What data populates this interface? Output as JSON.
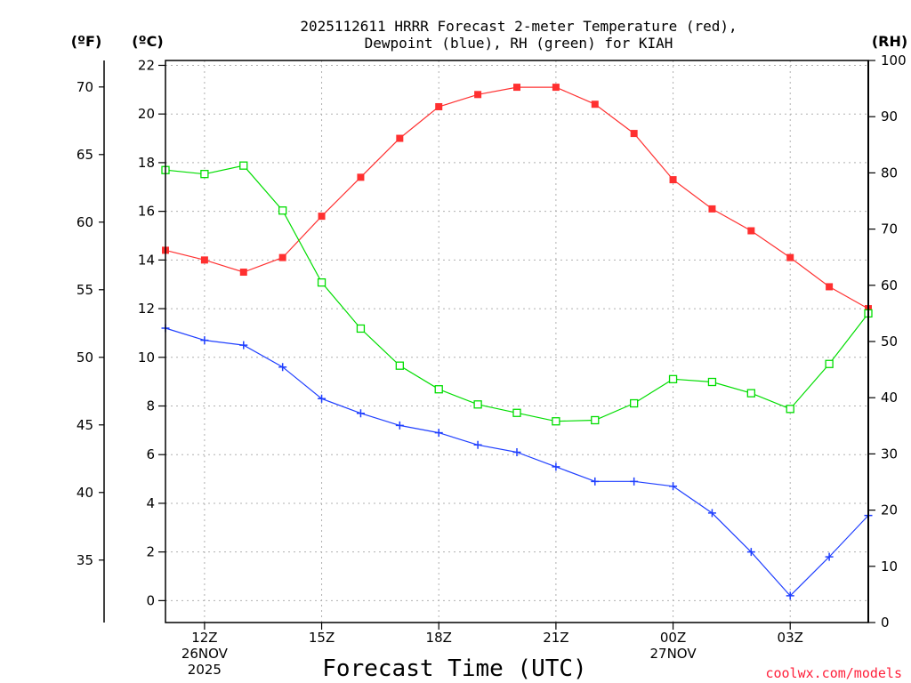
{
  "chart_data": {
    "type": "line",
    "title_line1": "2025112611 HRRR Forecast 2-meter Temperature (red),",
    "title_line2": "Dewpoint (blue), RH (green) for KIAH",
    "xlabel": "Forecast Time (UTC)",
    "credit": "coolwx.com/models",
    "left_outer_axis": {
      "label": "(ºF)",
      "ticks": [
        35,
        40,
        45,
        50,
        55,
        60,
        65,
        70
      ]
    },
    "left_axis": {
      "label": "(ºC)",
      "ylim": [
        -0.9,
        22.2
      ],
      "ticks": [
        0,
        2,
        4,
        6,
        8,
        10,
        12,
        14,
        16,
        18,
        20,
        22
      ]
    },
    "right_axis": {
      "label": "(RH)",
      "ylim": [
        0,
        100
      ],
      "ticks": [
        0,
        10,
        20,
        30,
        40,
        50,
        60,
        70,
        80,
        90,
        100
      ]
    },
    "x_hours": [
      11,
      12,
      13,
      14,
      15,
      16,
      17,
      18,
      19,
      20,
      21,
      22,
      23,
      24,
      25,
      26,
      27,
      28,
      29
    ],
    "x_range": [
      11,
      29
    ],
    "x_ticks": [
      {
        "hour": 12,
        "lines": [
          "12Z",
          "26NOV",
          "2025"
        ]
      },
      {
        "hour": 15,
        "lines": [
          "15Z"
        ]
      },
      {
        "hour": 18,
        "lines": [
          "18Z"
        ]
      },
      {
        "hour": 21,
        "lines": [
          "21Z"
        ]
      },
      {
        "hour": 24,
        "lines": [
          "00Z",
          "27NOV"
        ]
      },
      {
        "hour": 27,
        "lines": [
          "03Z"
        ]
      }
    ],
    "series": [
      {
        "name": "2-meter Temperature",
        "axis": "left",
        "color": "#ff3030",
        "marker": "filled-square",
        "values": [
          14.4,
          14.0,
          13.5,
          14.1,
          15.8,
          17.4,
          19.0,
          20.3,
          20.8,
          21.1,
          21.1,
          20.4,
          19.2,
          17.3,
          16.1,
          15.2,
          14.1,
          12.9,
          12.0
        ]
      },
      {
        "name": "Dewpoint",
        "axis": "left",
        "color": "#1f3fff",
        "marker": "plus",
        "values": [
          11.2,
          10.7,
          10.5,
          9.6,
          8.3,
          7.7,
          7.2,
          6.9,
          6.4,
          6.1,
          5.5,
          4.9,
          4.9,
          4.7,
          3.6,
          2.0,
          0.2,
          1.8,
          3.5
        ]
      },
      {
        "name": "RH",
        "axis": "right",
        "color": "#00dd00",
        "marker": "open-square",
        "values": [
          80.5,
          79.8,
          81.3,
          73.3,
          60.5,
          52.3,
          45.7,
          41.5,
          38.8,
          37.3,
          35.8,
          36.0,
          39.0,
          43.3,
          42.8,
          40.8,
          38.0,
          46.0,
          55.0
        ]
      }
    ]
  }
}
